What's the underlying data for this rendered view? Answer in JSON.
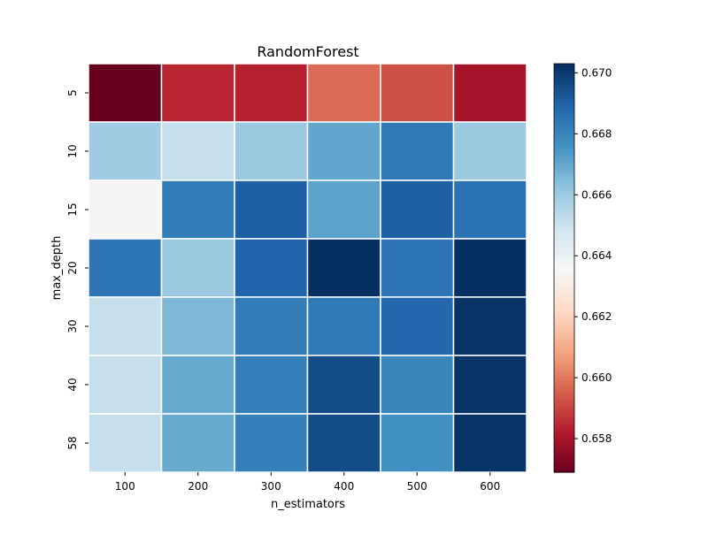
{
  "chart_data": {
    "type": "heatmap",
    "title": "RandomForest",
    "xlabel": "n_estimators",
    "ylabel": "max_depth",
    "x_categories": [
      "100",
      "200",
      "300",
      "400",
      "500",
      "600"
    ],
    "y_categories": [
      "5",
      "10",
      "15",
      "20",
      "30",
      "40",
      "58"
    ],
    "values": [
      [
        0.6569,
        0.6585,
        0.6584,
        0.6598,
        0.6593,
        0.658
      ],
      [
        0.666,
        0.6652,
        0.6661,
        0.6671,
        0.6684,
        0.6661
      ],
      [
        0.6635,
        0.6683,
        0.6691,
        0.6672,
        0.6691,
        0.6686
      ],
      [
        0.6685,
        0.6661,
        0.669,
        0.6703,
        0.6685,
        0.6703
      ],
      [
        0.6652,
        0.6666,
        0.6683,
        0.6684,
        0.6689,
        0.6702
      ],
      [
        0.6652,
        0.667,
        0.6682,
        0.6696,
        0.668,
        0.6702
      ],
      [
        0.6652,
        0.667,
        0.6682,
        0.6696,
        0.6677,
        0.6702
      ]
    ],
    "vmin": 0.6569,
    "vmax": 0.6703,
    "colormap": "RdBu",
    "colorbar_ticks": [
      "0.658",
      "0.660",
      "0.662",
      "0.664",
      "0.666",
      "0.668",
      "0.670"
    ],
    "cell_border_color": "#ffffff",
    "grid": false,
    "legend": "colorbar-right"
  }
}
